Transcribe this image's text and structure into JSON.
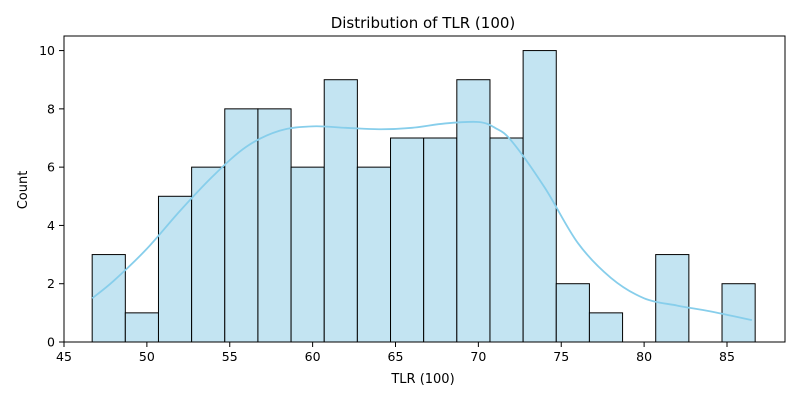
{
  "chart_data": {
    "type": "bar",
    "subtype": "histogram-with-kde",
    "title": "Distribution of TLR (100)",
    "xlabel": "TLR (100)",
    "ylabel": "Count",
    "xlim": [
      45,
      88.5
    ],
    "ylim": [
      0,
      10.5
    ],
    "xticks": [
      45,
      50,
      55,
      60,
      65,
      70,
      75,
      80,
      85
    ],
    "yticks": [
      0,
      2,
      4,
      6,
      8,
      10
    ],
    "bins": [
      {
        "x0": 46.7,
        "x1": 48.7,
        "count": 3
      },
      {
        "x0": 48.7,
        "x1": 50.7,
        "count": 1
      },
      {
        "x0": 50.7,
        "x1": 52.7,
        "count": 5
      },
      {
        "x0": 52.7,
        "x1": 54.7,
        "count": 6
      },
      {
        "x0": 54.7,
        "x1": 56.7,
        "count": 8
      },
      {
        "x0": 56.7,
        "x1": 58.7,
        "count": 8
      },
      {
        "x0": 58.7,
        "x1": 60.7,
        "count": 6
      },
      {
        "x0": 60.7,
        "x1": 62.7,
        "count": 9
      },
      {
        "x0": 62.7,
        "x1": 64.7,
        "count": 6
      },
      {
        "x0": 64.7,
        "x1": 66.7,
        "count": 7
      },
      {
        "x0": 66.7,
        "x1": 68.7,
        "count": 7
      },
      {
        "x0": 68.7,
        "x1": 70.7,
        "count": 9
      },
      {
        "x0": 70.7,
        "x1": 72.7,
        "count": 7
      },
      {
        "x0": 72.7,
        "x1": 74.7,
        "count": 10
      },
      {
        "x0": 74.7,
        "x1": 76.7,
        "count": 2
      },
      {
        "x0": 76.7,
        "x1": 78.7,
        "count": 1
      },
      {
        "x0": 78.7,
        "x1": 80.7,
        "count": 0
      },
      {
        "x0": 80.7,
        "x1": 82.7,
        "count": 3
      },
      {
        "x0": 82.7,
        "x1": 84.7,
        "count": 0
      },
      {
        "x0": 84.7,
        "x1": 86.7,
        "count": 2
      }
    ],
    "kde": {
      "x": [
        46.7,
        48,
        50,
        52,
        54,
        56,
        58,
        60,
        62,
        64,
        66,
        68,
        70,
        71,
        72,
        74,
        76,
        78,
        80,
        82,
        84,
        86.5
      ],
      "y": [
        1.5,
        2.1,
        3.2,
        4.5,
        5.7,
        6.7,
        7.25,
        7.4,
        7.35,
        7.3,
        7.35,
        7.5,
        7.55,
        7.35,
        6.9,
        5.3,
        3.4,
        2.2,
        1.5,
        1.25,
        1.05,
        0.75
      ]
    },
    "grid": false,
    "colors": {
      "bar_fill": "#C3E4F2",
      "bar_edge": "#000000",
      "kde_line": "#87CEEB",
      "axes": "#000000"
    }
  }
}
